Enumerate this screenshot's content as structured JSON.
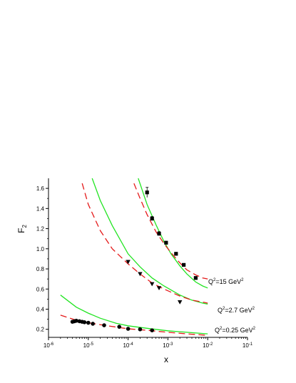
{
  "chart_data": {
    "type": "scatter",
    "x_scale": "log",
    "y_scale": "linear",
    "xlim": [
      1e-06,
      0.1
    ],
    "ylim": [
      0.12,
      1.7
    ],
    "grid": false,
    "xlabel": "x",
    "ylabel": {
      "main": "F",
      "sub": "2"
    },
    "x_ticks": [
      {
        "value": 1e-06,
        "base": "10",
        "exp": "-6"
      },
      {
        "value": 1e-05,
        "base": "10",
        "exp": "-5"
      },
      {
        "value": 0.0001,
        "base": "10",
        "exp": "-4"
      },
      {
        "value": 0.001,
        "base": "10",
        "exp": "-3"
      },
      {
        "value": 0.01,
        "base": "10",
        "exp": "-2"
      },
      {
        "value": 0.1,
        "base": "10",
        "exp": "-1"
      }
    ],
    "y_ticks": [
      "0.2",
      "0.4",
      "0.6",
      "0.8",
      "1.0",
      "1.2",
      "1.4",
      "1.6"
    ],
    "series": [
      {
        "marker": "square",
        "color": "#000000",
        "points": [
          {
            "x": 0.0003,
            "y": 1.56,
            "err": 0.05
          },
          {
            "x": 0.0004,
            "y": 1.3,
            "err": 0.02
          },
          {
            "x": 0.0006,
            "y": 1.15,
            "err": 0.02
          },
          {
            "x": 0.0009,
            "y": 1.06,
            "err": 0.015
          },
          {
            "x": 0.0016,
            "y": 0.95,
            "err": 0.015
          },
          {
            "x": 0.0025,
            "y": 0.84,
            "err": 0.01
          },
          {
            "x": 0.005,
            "y": 0.71,
            "err": 0.01
          }
        ]
      },
      {
        "marker": "triangle-down",
        "color": "#000000",
        "points": [
          {
            "x": 0.0001,
            "y": 0.87
          },
          {
            "x": 0.0002,
            "y": 0.75
          },
          {
            "x": 0.0004,
            "y": 0.65
          },
          {
            "x": 0.0006,
            "y": 0.61
          },
          {
            "x": 0.002,
            "y": 0.47
          }
        ]
      },
      {
        "marker": "circle",
        "color": "#000000",
        "points": [
          {
            "x": 4e-06,
            "y": 0.275
          },
          {
            "x": 4.5e-06,
            "y": 0.28
          },
          {
            "x": 5e-06,
            "y": 0.285
          },
          {
            "x": 6e-06,
            "y": 0.28
          },
          {
            "x": 7e-06,
            "y": 0.275
          },
          {
            "x": 8e-06,
            "y": 0.27
          },
          {
            "x": 1e-05,
            "y": 0.265
          },
          {
            "x": 1.3e-05,
            "y": 0.255
          },
          {
            "x": 2.5e-05,
            "y": 0.24
          },
          {
            "x": 6e-05,
            "y": 0.225
          },
          {
            "x": 0.0001,
            "y": 0.205
          },
          {
            "x": 0.0002,
            "y": 0.2
          },
          {
            "x": 0.0004,
            "y": 0.19
          }
        ]
      }
    ],
    "curves": [
      {
        "style": "solid",
        "color": "#22e422",
        "x": [
          0.00018,
          0.0003,
          0.0005,
          0.0008,
          0.0012,
          0.002,
          0.003,
          0.005,
          0.0075,
          0.01
        ],
        "y": [
          1.7,
          1.44,
          1.24,
          1.07,
          0.95,
          0.83,
          0.75,
          0.67,
          0.63,
          0.61
        ]
      },
      {
        "style": "dashed",
        "color": "#e41a1a",
        "x": [
          0.00014,
          0.0002,
          0.0003,
          0.0005,
          0.0008,
          0.0012,
          0.002,
          0.003,
          0.005,
          0.0075,
          0.01
        ],
        "y": [
          1.65,
          1.5,
          1.34,
          1.17,
          1.05,
          0.96,
          0.86,
          0.79,
          0.74,
          0.71,
          0.7
        ]
      },
      {
        "style": "solid",
        "color": "#22e422",
        "x": [
          1.25e-05,
          2e-05,
          4e-05,
          0.0001,
          0.0002,
          0.0004,
          0.0008,
          0.002,
          0.004,
          0.0075,
          0.01
        ],
        "y": [
          1.7,
          1.48,
          1.23,
          0.95,
          0.82,
          0.71,
          0.63,
          0.54,
          0.49,
          0.46,
          0.45
        ]
      },
      {
        "style": "dashed",
        "color": "#e41a1a",
        "x": [
          7e-06,
          1e-05,
          2e-05,
          4e-05,
          0.0001,
          0.0002,
          0.0004,
          0.0008,
          0.002,
          0.004,
          0.0075,
          0.01
        ],
        "y": [
          1.65,
          1.44,
          1.18,
          1.0,
          0.85,
          0.75,
          0.66,
          0.6,
          0.53,
          0.49,
          0.47,
          0.46
        ]
      },
      {
        "style": "solid",
        "color": "#22e422",
        "x": [
          2e-06,
          5e-06,
          1e-05,
          2e-05,
          5e-05,
          0.0001,
          0.0003,
          0.001,
          0.003,
          0.01
        ],
        "y": [
          0.54,
          0.42,
          0.36,
          0.31,
          0.26,
          0.235,
          0.21,
          0.185,
          0.17,
          0.155
        ]
      },
      {
        "style": "dashed",
        "color": "#e41a1a",
        "x": [
          2e-06,
          5e-06,
          1e-05,
          3e-05,
          0.0001,
          0.0003,
          0.001,
          0.003,
          0.01
        ],
        "y": [
          0.34,
          0.29,
          0.265,
          0.235,
          0.205,
          0.19,
          0.17,
          0.155,
          0.14
        ]
      }
    ],
    "annotations": [
      {
        "base": "Q",
        "base_sup": "2",
        "text": "=15 GeV",
        "sup": "2"
      },
      {
        "base": "Q",
        "base_sup": "2",
        "text": "=2.7 GeV",
        "sup": "2"
      },
      {
        "base": "Q",
        "base_sup": "2",
        "text": "=0.25 GeV",
        "sup": "2"
      }
    ]
  }
}
